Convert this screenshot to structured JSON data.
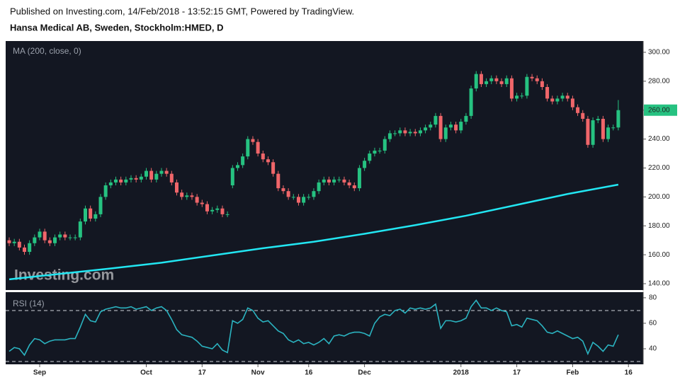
{
  "header": {
    "published": "Published on Investing.com, 14/Feb/2018 - 13:52:15 GMT, Powered by TradingView.",
    "symbol": "Hansa Medical AB, Sweden, Stockholm:HMED, D"
  },
  "chart_data": [
    {
      "type": "candlestick",
      "watermark": "Investing.com",
      "up_color": "#26c281",
      "down_color": "#f0666a",
      "xlim": [
        -0.7,
        124.9
      ],
      "ylim": [
        135.6,
        307.8
      ],
      "yticks": [
        {
          "value": 140,
          "label": "140.00"
        },
        {
          "value": 160,
          "label": "160.00"
        },
        {
          "value": 180,
          "label": "180.00"
        },
        {
          "value": 200,
          "label": "200.00"
        },
        {
          "value": 220,
          "label": "220.00"
        },
        {
          "value": 240,
          "label": "240.00"
        },
        {
          "value": 260,
          "label": "260.00"
        },
        {
          "value": 280,
          "label": "280.00"
        },
        {
          "value": 300,
          "label": "300.00"
        }
      ],
      "last_label": "260.00",
      "candles": {
        "open": [
          170,
          168,
          169,
          165,
          162,
          168,
          172,
          176,
          170,
          168,
          172,
          174,
          172,
          172,
          172,
          183,
          192,
          185,
          188,
          200,
          208,
          210,
          212,
          210,
          212,
          213,
          212,
          214,
          218,
          212,
          216,
          218,
          216,
          210,
          203,
          200,
          201,
          200,
          196,
          195,
          190,
          191,
          192,
          188,
          208,
          220,
          222,
          228,
          240,
          238,
          230,
          226,
          224,
          216,
          206,
          204,
          200,
          200,
          196,
          200,
          200,
          204,
          210,
          212,
          210,
          212,
          212,
          210,
          208,
          206,
          220,
          225,
          230,
          232,
          232,
          240,
          244,
          244,
          246,
          244,
          245,
          244,
          246,
          248,
          250,
          256,
          240,
          248,
          250,
          246,
          252,
          256,
          275,
          285,
          278,
          280,
          282,
          280,
          278,
          282,
          268,
          270,
          270,
          283,
          282,
          280,
          276,
          268,
          266,
          268,
          270,
          268,
          262,
          258,
          254,
          236,
          253,
          254,
          240,
          248,
          248
        ],
        "high": [
          172,
          171,
          171,
          167,
          170,
          174,
          178,
          178,
          172,
          174,
          176,
          176,
          174,
          174,
          185,
          194,
          194,
          190,
          202,
          210,
          212,
          214,
          214,
          214,
          215,
          215,
          216,
          220,
          220,
          218,
          220,
          220,
          218,
          212,
          205,
          203,
          203,
          202,
          198,
          197,
          193,
          194,
          194,
          190,
          222,
          224,
          230,
          242,
          242,
          240,
          232,
          228,
          226,
          218,
          208,
          206,
          202,
          202,
          202,
          202,
          206,
          212,
          214,
          214,
          214,
          214,
          214,
          212,
          210,
          222,
          227,
          232,
          234,
          234,
          242,
          246,
          246,
          248,
          248,
          247,
          247,
          248,
          250,
          252,
          258,
          258,
          250,
          252,
          252,
          254,
          258,
          277,
          287,
          287,
          282,
          284,
          284,
          282,
          284,
          284,
          272,
          272,
          285,
          285,
          284,
          282,
          278,
          270,
          270,
          272,
          272,
          270,
          264,
          260,
          256,
          255,
          256,
          256,
          250,
          250,
          267
        ],
        "low": [
          166,
          166,
          163,
          160,
          160,
          166,
          170,
          168,
          166,
          166,
          170,
          170,
          170,
          170,
          170,
          181,
          183,
          183,
          186,
          198,
          206,
          208,
          208,
          208,
          210,
          210,
          210,
          212,
          210,
          210,
          214,
          214,
          208,
          201,
          198,
          198,
          198,
          194,
          193,
          188,
          188,
          189,
          186,
          186,
          206,
          218,
          220,
          226,
          236,
          228,
          224,
          222,
          214,
          204,
          202,
          198,
          198,
          194,
          194,
          198,
          198,
          202,
          208,
          208,
          208,
          210,
          208,
          206,
          204,
          204,
          218,
          223,
          228,
          230,
          230,
          238,
          242,
          242,
          242,
          242,
          242,
          242,
          244,
          246,
          248,
          238,
          238,
          246,
          244,
          244,
          250,
          254,
          273,
          276,
          276,
          278,
          278,
          276,
          276,
          266,
          266,
          268,
          268,
          280,
          278,
          274,
          266,
          264,
          264,
          266,
          266,
          260,
          256,
          252,
          234,
          234,
          251,
          238,
          238,
          246,
          246
        ],
        "close": [
          168,
          169,
          165,
          162,
          168,
          172,
          176,
          170,
          168,
          172,
          174,
          172,
          172,
          172,
          183,
          192,
          185,
          188,
          200,
          208,
          210,
          212,
          210,
          212,
          213,
          212,
          214,
          218,
          212,
          216,
          218,
          216,
          210,
          203,
          200,
          201,
          200,
          196,
          195,
          190,
          191,
          192,
          188,
          188,
          220,
          222,
          228,
          240,
          238,
          230,
          226,
          224,
          216,
          206,
          204,
          200,
          200,
          196,
          200,
          200,
          204,
          210,
          212,
          210,
          212,
          212,
          210,
          208,
          206,
          220,
          225,
          230,
          232,
          232,
          240,
          244,
          244,
          246,
          244,
          245,
          244,
          246,
          248,
          250,
          256,
          240,
          248,
          250,
          246,
          252,
          256,
          275,
          285,
          278,
          280,
          282,
          280,
          278,
          282,
          268,
          270,
          270,
          283,
          282,
          280,
          276,
          268,
          266,
          268,
          270,
          268,
          262,
          258,
          254,
          236,
          253,
          254,
          240,
          248,
          248,
          260
        ]
      },
      "ma": {
        "name": "MA (200, close, 0)",
        "color": "#22e6f2",
        "x": [
          0,
          10,
          20,
          30,
          40,
          50,
          60,
          70,
          80,
          90,
          100,
          110,
          120
        ],
        "values": [
          143,
          146.8,
          150.5,
          154.5,
          159.5,
          164.5,
          169,
          174.5,
          180.5,
          187,
          194.5,
          202,
          208.5
        ]
      }
    },
    {
      "type": "line",
      "name": "RSI (14)",
      "color": "#2bb3c0",
      "xlim": [
        -0.7,
        124.9
      ],
      "ylim": [
        27.8,
        84.4
      ],
      "yticks": [
        40,
        60,
        80
      ],
      "bands": [
        30,
        70
      ],
      "xticks": [
        {
          "value": 6,
          "label": "Sep"
        },
        {
          "value": 27,
          "label": "Oct"
        },
        {
          "value": 38,
          "label": "17"
        },
        {
          "value": 49,
          "label": "Nov"
        },
        {
          "value": 59,
          "label": "16"
        },
        {
          "value": 70,
          "label": "Dec"
        },
        {
          "value": 89,
          "label": "2018"
        },
        {
          "value": 100,
          "label": "17"
        },
        {
          "value": 111,
          "label": "Feb"
        },
        {
          "value": 122,
          "label": "16"
        }
      ],
      "values": [
        38,
        41,
        40,
        35,
        43,
        48,
        47,
        44,
        46,
        47,
        47,
        47,
        48,
        48,
        57,
        67,
        62,
        61,
        69,
        71,
        72,
        73,
        72,
        72,
        73,
        71,
        72,
        73,
        70,
        72,
        73,
        70,
        63,
        55,
        51,
        50,
        49,
        46,
        42,
        41,
        40,
        44,
        39,
        37,
        62,
        60,
        63,
        72,
        70,
        64,
        61,
        62,
        58,
        54,
        52,
        47,
        45,
        47,
        44,
        45,
        43,
        45,
        48,
        44,
        50,
        51,
        50,
        52,
        53,
        53,
        52,
        50,
        60,
        65,
        67,
        66,
        70,
        71,
        68,
        72,
        71,
        72,
        71,
        72,
        75,
        56,
        62,
        62,
        61,
        62,
        64,
        73,
        78,
        72,
        72,
        70,
        72,
        70,
        69,
        58,
        59,
        57,
        64,
        63,
        62,
        58,
        53,
        52,
        54,
        52,
        50,
        48,
        49,
        46,
        36,
        45,
        42,
        38,
        43,
        42,
        51
      ]
    }
  ]
}
